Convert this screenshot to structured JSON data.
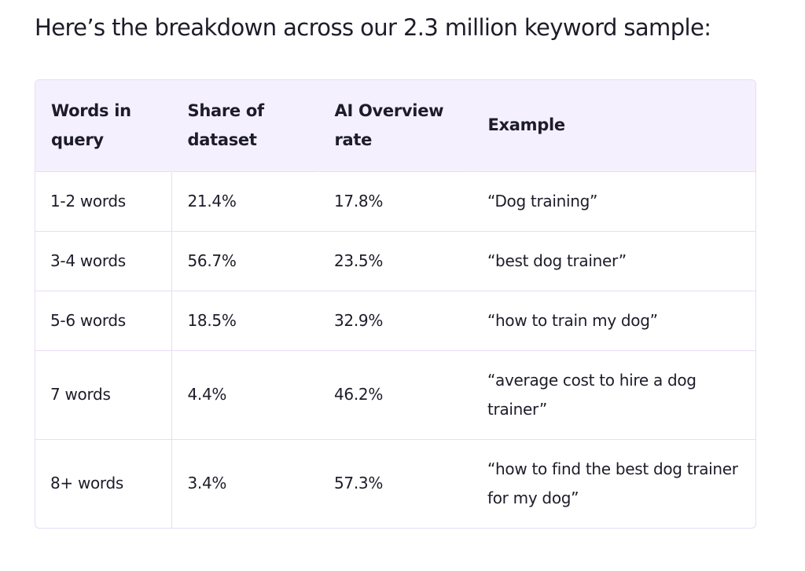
{
  "intro": "Here’s the breakdown across our 2.3 million keyword sample:",
  "table": {
    "headers": [
      "Words in query",
      "Share of dataset",
      "AI Overview rate",
      "Example"
    ],
    "rows": [
      [
        "1-2 words",
        "21.4%",
        "17.8%",
        "“Dog training”"
      ],
      [
        "3-4 words",
        "56.7%",
        "23.5%",
        "“best dog trainer”"
      ],
      [
        "5-6 words",
        "18.5%",
        "32.9%",
        "“how to train my dog”"
      ],
      [
        "7 words",
        "4.4%",
        "46.2%",
        "“average cost to hire a dog trainer”"
      ],
      [
        "8+ words",
        "3.4%",
        "57.3%",
        "“how to find the best dog trainer for my dog”"
      ]
    ]
  }
}
